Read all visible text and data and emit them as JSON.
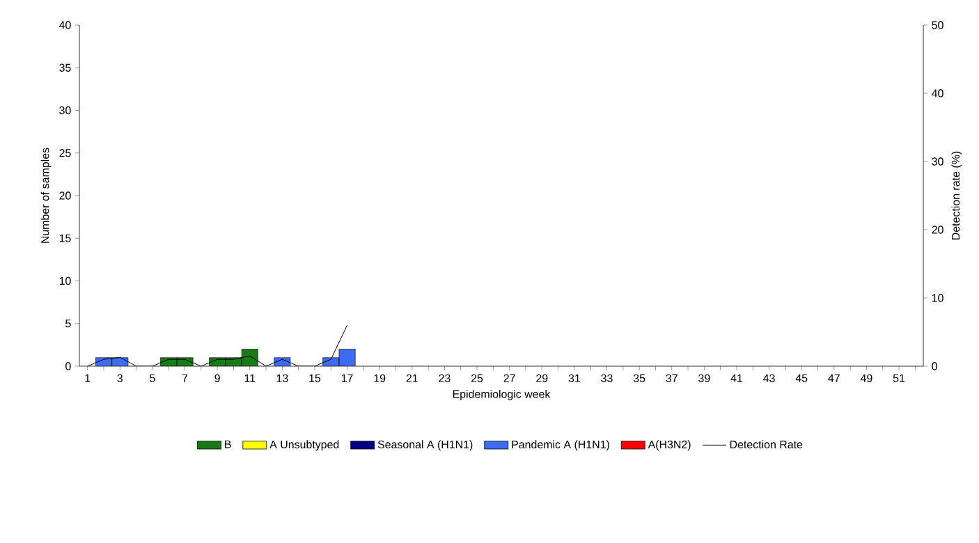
{
  "chart_data": {
    "type": "bar",
    "stacked": true,
    "xlabel": "Epidemiologic week",
    "ylabel": "Number of samples",
    "y2label": "Detection rate (%)",
    "categories": [
      "1",
      null,
      "3",
      null,
      "5",
      null,
      "7",
      null,
      "9",
      null,
      "11",
      null,
      "13",
      null,
      "15",
      null,
      "17",
      null,
      "19",
      null,
      "21",
      null,
      "23",
      null,
      "25",
      null,
      "27",
      null,
      "29",
      null,
      "31",
      null,
      "33",
      null,
      "35",
      null,
      "37",
      null,
      "39",
      null,
      "41",
      null,
      "43",
      null,
      "45",
      null,
      "47",
      null,
      "49",
      null,
      "51",
      null
    ],
    "series": [
      {
        "name": "B",
        "color": "#1a7a1a",
        "values": [
          0,
          0,
          0,
          0,
          0,
          1,
          1,
          0,
          1,
          1,
          2,
          0,
          0,
          0,
          0,
          0,
          0,
          0,
          0,
          0,
          0,
          0,
          0,
          0,
          0,
          0,
          0,
          0,
          0,
          0,
          0,
          0,
          0,
          0,
          0,
          0,
          0,
          0,
          0,
          0,
          0,
          0,
          0,
          0,
          0,
          0,
          0,
          0,
          0,
          0,
          0,
          0
        ]
      },
      {
        "name": "A Unsubtyped",
        "color": "#ffff00",
        "values": [
          0,
          0,
          0,
          0,
          0,
          0,
          0,
          0,
          0,
          0,
          0,
          0,
          0,
          0,
          0,
          0,
          0,
          0,
          0,
          0,
          0,
          0,
          0,
          0,
          0,
          0,
          0,
          0,
          0,
          0,
          0,
          0,
          0,
          0,
          0,
          0,
          0,
          0,
          0,
          0,
          0,
          0,
          0,
          0,
          0,
          0,
          0,
          0,
          0,
          0,
          0,
          0
        ]
      },
      {
        "name": "Seasonal A (H1N1)",
        "color": "#000080",
        "values": [
          0,
          0,
          0,
          0,
          0,
          0,
          0,
          0,
          0,
          0,
          0,
          0,
          0,
          0,
          0,
          0,
          0,
          0,
          0,
          0,
          0,
          0,
          0,
          0,
          0,
          0,
          0,
          0,
          0,
          0,
          0,
          0,
          0,
          0,
          0,
          0,
          0,
          0,
          0,
          0,
          0,
          0,
          0,
          0,
          0,
          0,
          0,
          0,
          0,
          0,
          0,
          0
        ]
      },
      {
        "name": "Pandemic A (H1N1)",
        "color": "#3d6cf0",
        "values": [
          0,
          1,
          1,
          0,
          0,
          0,
          0,
          0,
          0,
          0,
          0,
          0,
          1,
          0,
          0,
          1,
          2,
          0,
          0,
          0,
          0,
          0,
          0,
          0,
          0,
          0,
          0,
          0,
          0,
          0,
          0,
          0,
          0,
          0,
          0,
          0,
          0,
          0,
          0,
          0,
          0,
          0,
          0,
          0,
          0,
          0,
          0,
          0,
          0,
          0,
          0,
          0
        ]
      },
      {
        "name": "A(H3N2)",
        "color": "#ff0000",
        "values": [
          0,
          0,
          0,
          0,
          0,
          0,
          0,
          0,
          0,
          0,
          0,
          0,
          0,
          0,
          0,
          0,
          0,
          0,
          0,
          0,
          0,
          0,
          0,
          0,
          0,
          0,
          0,
          0,
          0,
          0,
          0,
          0,
          0,
          0,
          0,
          0,
          0,
          0,
          0,
          0,
          0,
          0,
          0,
          0,
          0,
          0,
          0,
          0,
          0,
          0,
          0,
          0
        ]
      },
      {
        "name": "Detection Rate",
        "type": "line",
        "axis": "y2",
        "color": "#000000",
        "values": [
          0,
          1,
          1.3,
          0,
          0,
          1,
          1,
          0,
          1,
          1,
          1.5,
          0,
          1,
          0,
          0,
          1,
          6,
          null,
          null,
          null,
          null,
          null,
          null,
          null,
          null,
          null,
          null,
          null,
          null,
          null,
          null,
          null,
          null,
          null,
          null,
          null,
          null,
          null,
          null,
          null,
          null,
          null,
          null,
          null,
          null,
          null,
          null,
          null,
          null,
          null,
          null,
          null
        ]
      }
    ],
    "ylim": [
      0,
      40
    ],
    "yticks": [
      0,
      5,
      10,
      15,
      20,
      25,
      30,
      35,
      40
    ],
    "y2lim": [
      0,
      50
    ],
    "y2ticks": [
      0,
      10,
      20,
      30,
      40,
      50
    ],
    "legend": "bottom",
    "grid": false,
    "marker": "none",
    "line_style": "solid"
  }
}
